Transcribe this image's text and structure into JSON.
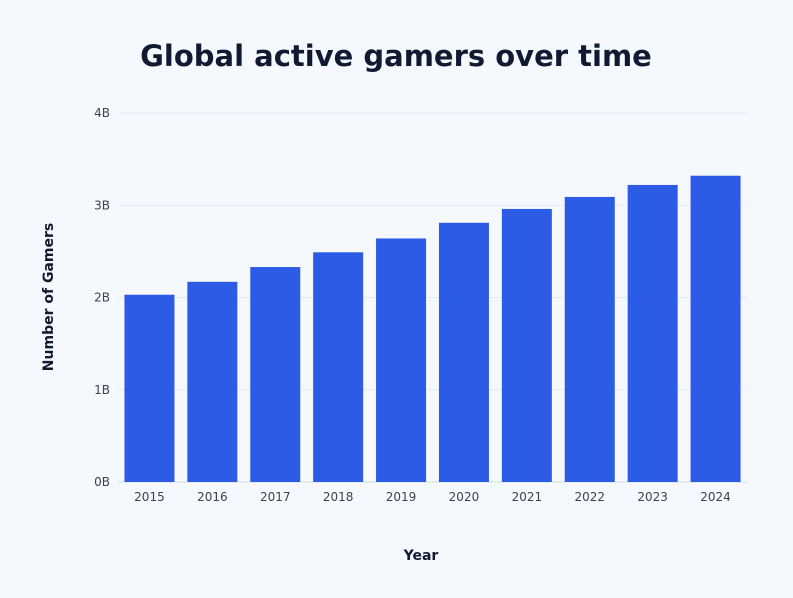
{
  "chart_data": {
    "type": "bar",
    "title": "Global active gamers over time",
    "xlabel": "Year",
    "ylabel": "Number of Gamers",
    "categories": [
      "2015",
      "2016",
      "2017",
      "2018",
      "2019",
      "2020",
      "2021",
      "2022",
      "2023",
      "2024"
    ],
    "values": [
      2.03,
      2.17,
      2.33,
      2.49,
      2.64,
      2.81,
      2.96,
      3.09,
      3.22,
      3.32
    ],
    "value_unit": "billions",
    "ylim": [
      0,
      4
    ],
    "yticks": [
      0,
      1,
      2,
      3,
      4
    ],
    "ytick_labels": [
      "0B",
      "1B",
      "2B",
      "3B",
      "4B"
    ],
    "grid": true,
    "bar_color": "#2c5ce6"
  }
}
